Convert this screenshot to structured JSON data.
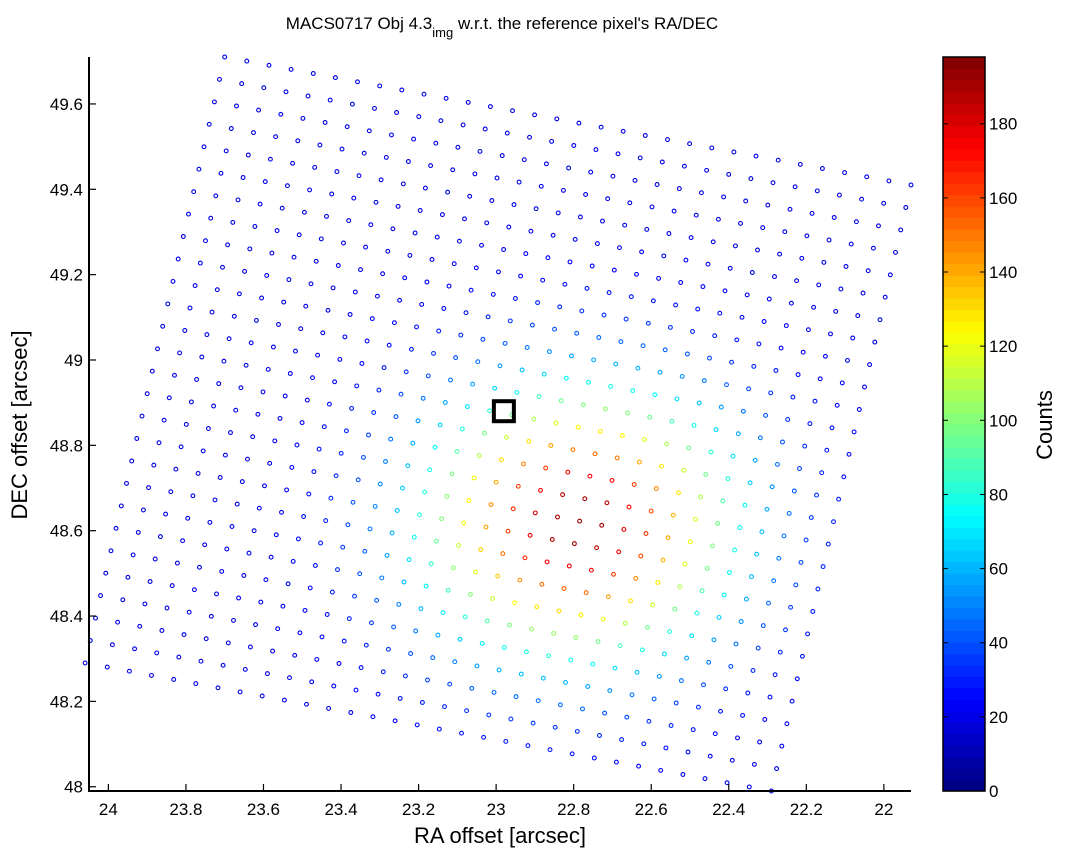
{
  "chart_data": {
    "type": "scatter",
    "title": {
      "main": "MACS0717 Obj 4.3",
      "subscript": "img",
      "rest": " w.r.t. the reference pixel's RA/DEC"
    },
    "xlabel": "RA offset [arcsec]",
    "ylabel": "DEC offset [arcsec]",
    "xlim": [
      24.05,
      21.93
    ],
    "ylim": [
      47.99,
      49.71
    ],
    "x_reversed": true,
    "x_ticks": [
      24,
      23.8,
      23.6,
      23.4,
      23.2,
      23,
      22.8,
      22.6,
      22.4,
      22.2,
      22
    ],
    "y_ticks": [
      48,
      48.2,
      48.4,
      48.6,
      48.8,
      49,
      49.2,
      49.4,
      49.6
    ],
    "grid": false,
    "colorbar": {
      "label": "Counts",
      "range": [
        0,
        198
      ],
      "ticks": [
        0,
        20,
        40,
        60,
        80,
        100,
        120,
        140,
        160,
        180
      ],
      "colormap": "jet"
    },
    "grid_spec": {
      "corners_data": {
        "top_left": [
          23.7,
          49.71
        ],
        "top_right": [
          21.93,
          49.41
        ],
        "bottom_right": [
          22.28,
          47.99
        ],
        "bottom_left": [
          24.06,
          48.29
        ]
      },
      "columns": 32,
      "rows": 28
    },
    "source_model": {
      "peak_value": 195,
      "peak_ra": 22.79,
      "peak_dec": 48.62,
      "sigma_ra": 0.28,
      "sigma_dec": 0.22,
      "floor": 20
    },
    "reference_marker": {
      "ra": 22.98,
      "dec": 48.88,
      "shape": "square",
      "color": "#000000"
    }
  }
}
